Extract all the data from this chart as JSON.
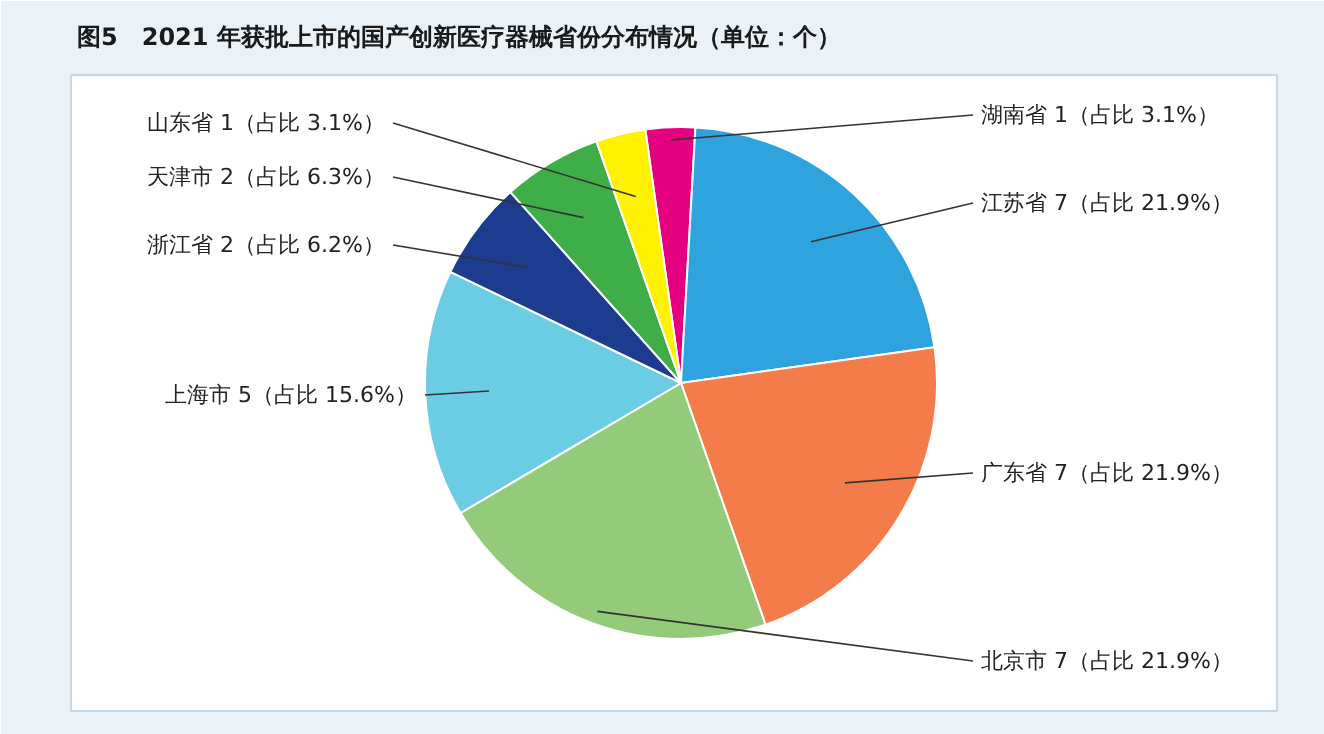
{
  "chart_data": {
    "type": "pie",
    "title": "图5　2021 年获批上市的国产创新医疗器械省份分布情况（单位：个）",
    "categories": [
      "湖南省",
      "江苏省",
      "广东省",
      "北京市",
      "上海市",
      "浙江省",
      "天津市",
      "山东省"
    ],
    "values": [
      1,
      7,
      7,
      7,
      5,
      2,
      2,
      1
    ],
    "value_labels": [
      "1（占比 3.1%）",
      "7（占比 21.9%）",
      "7（占比 21.9%）",
      "7（占比 21.9%）",
      "5（占比 15.6%）",
      "2（占比 6.2%）",
      "2（占比 6.3%）",
      "1（占比 3.1%）"
    ],
    "colors": [
      "#e4007f",
      "#2fa3dd",
      "#f47b4a",
      "#93cb7b",
      "#6bcde3",
      "#1d3c8f",
      "#3fae49",
      "#fff100"
    ]
  }
}
